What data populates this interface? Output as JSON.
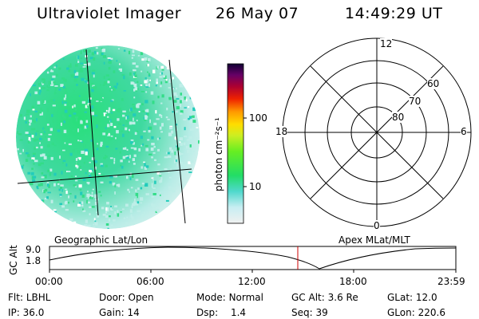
{
  "header": {
    "instrument": "Ultraviolet Imager",
    "date": "26 May 07",
    "time": "14:49:29 UT"
  },
  "colorbar": {
    "unit_label": "photon cm⁻²s⁻¹",
    "ticks": [
      "100",
      "10"
    ]
  },
  "polar_plot": {
    "mlt_labels": {
      "top": "12",
      "left": "18",
      "right": "6",
      "bottom": "0"
    },
    "mlat_labels": [
      "60",
      "70",
      "80"
    ]
  },
  "timeline": {
    "left_caption": "Geographic Lat/Lon",
    "right_caption": "Apex MLat/MLT",
    "y_axis_title": "GC Alt",
    "y_ticks": [
      "9.0",
      "1.8"
    ],
    "x_ticks": [
      "00:00",
      "06:00",
      "12:00",
      "18:00",
      "23:59"
    ],
    "current_time_marker": "14:49:29",
    "curve_color": "#000000",
    "marker_color": "#cc0000"
  },
  "status": {
    "flt_label": "Flt:",
    "flt_value": "LBHL",
    "ip_label": "IP:",
    "ip_value": "36.0",
    "door_label": "Door:",
    "door_value": "Open",
    "gain_label": "Gain:",
    "gain_value": "14",
    "mode_label": "Mode:",
    "mode_value": "Normal",
    "dsp_label": "Dsp:",
    "dsp_value": "1.4",
    "gcalt_label": "GC Alt:",
    "gcalt_value": "3.6 Re",
    "seq_label": "Seq:",
    "seq_value": "39",
    "glat_label": "GLat:",
    "glat_value": "12.0",
    "glon_label": "GLon:",
    "glon_value": "220.6"
  },
  "colors": {
    "image_primary": "#33dd88",
    "image_secondary": "#bfeee8",
    "image_tertiary": "#22ccbb"
  }
}
